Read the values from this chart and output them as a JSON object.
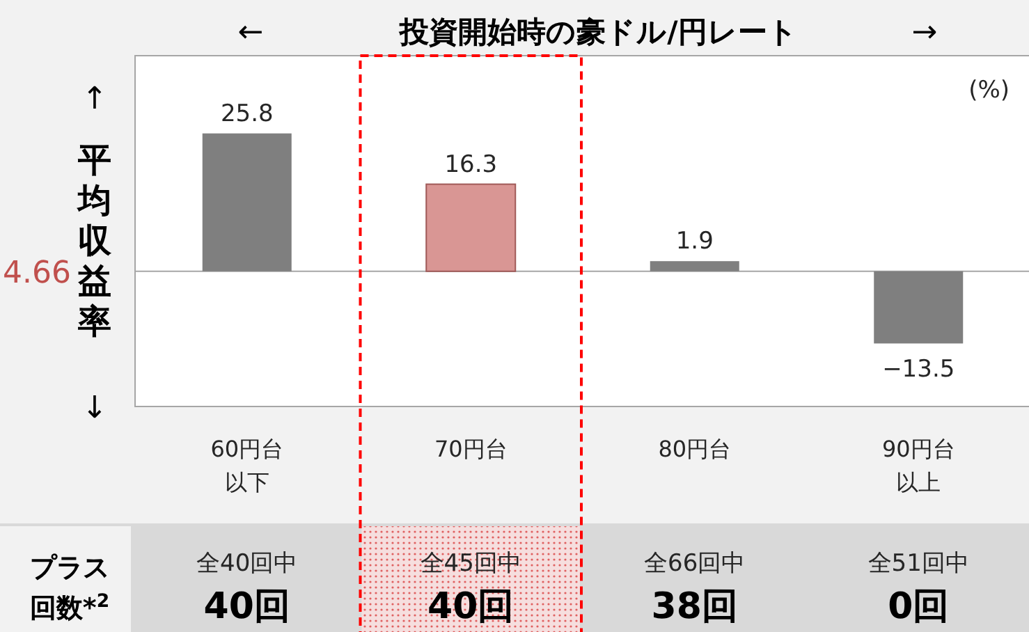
{
  "chart_data": {
    "type": "bar",
    "title": "投資開始時の豪ドル/円レート",
    "ylabel": "平均収益率",
    "categories": [
      "60円台以下",
      "70円台",
      "80円台",
      "90円台以上"
    ],
    "values": [
      25.8,
      16.3,
      1.9,
      -13.5
    ],
    "colors": [
      "#7f7f7f",
      "#d99694",
      "#7f7f7f",
      "#7f7f7f"
    ],
    "data_labels": true,
    "annotations": [
      "(%)",
      "4.66",
      "←",
      "→",
      "↑",
      "↓",
      "プラス",
      "回数*$^{2}$",
      "全40回中",
      "40回",
      "全45回中",
      "40回",
      "全66回中",
      "38回",
      "全51回中",
      "0回"
    ]
  }
}
